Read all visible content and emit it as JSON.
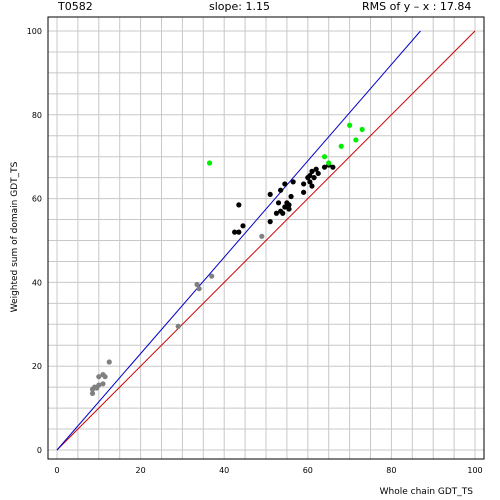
{
  "header": {
    "target": "T0582",
    "slope": "slope: 1.15",
    "rms": "RMS of  y – x : 17.84"
  },
  "chart_data": {
    "type": "scatter",
    "title": "",
    "xlabel": "Whole chain GDT_TS",
    "ylabel": "Weighted sum of domain GDT_TS",
    "xlim": [
      0,
      100
    ],
    "ylim": [
      0,
      100
    ],
    "x_ticks": [
      0,
      20,
      40,
      60,
      80,
      100
    ],
    "y_ticks": [
      0,
      20,
      40,
      60,
      80,
      100
    ],
    "grid": true,
    "lines": [
      {
        "name": "y = x",
        "color": "#cc0000",
        "slope": 1.0
      },
      {
        "name": "fit",
        "color": "#0000cc",
        "slope": 1.15
      }
    ],
    "series": [
      {
        "color": "#808080",
        "points": [
          [
            8.5,
            13.5
          ],
          [
            8.5,
            14.5
          ],
          [
            9,
            15
          ],
          [
            9.5,
            14.8
          ],
          [
            10,
            15.5
          ],
          [
            10,
            17.5
          ],
          [
            11,
            15.8
          ],
          [
            11,
            18
          ],
          [
            11.5,
            17.5
          ],
          [
            12.5,
            21
          ],
          [
            29,
            29.5
          ],
          [
            33.5,
            39.5
          ],
          [
            34,
            38.5
          ],
          [
            37,
            41.5
          ],
          [
            49,
            51
          ]
        ]
      },
      {
        "color": "#000000",
        "points": [
          [
            42.5,
            52
          ],
          [
            43.5,
            58.5
          ],
          [
            43.5,
            52
          ],
          [
            44.5,
            53.5
          ],
          [
            51,
            61
          ],
          [
            51,
            54.5
          ],
          [
            52.5,
            56.5
          ],
          [
            53,
            59
          ],
          [
            53.5,
            62
          ],
          [
            53.5,
            57
          ],
          [
            54,
            56.5
          ],
          [
            54.5,
            58
          ],
          [
            54.5,
            63.5
          ],
          [
            55,
            59
          ],
          [
            55.5,
            58.5
          ],
          [
            55.5,
            57.5
          ],
          [
            56,
            60.5
          ],
          [
            56.5,
            64
          ],
          [
            59,
            63.5
          ],
          [
            59,
            61.5
          ],
          [
            60,
            65
          ],
          [
            60.5,
            64
          ],
          [
            60.5,
            65.5
          ],
          [
            61,
            66.5
          ],
          [
            61,
            63
          ],
          [
            61.5,
            65
          ],
          [
            62,
            67
          ],
          [
            62.5,
            66
          ],
          [
            64,
            67.5
          ],
          [
            65,
            68
          ],
          [
            66,
            67.5
          ]
        ]
      },
      {
        "color": "#00ee00",
        "points": [
          [
            36.5,
            68.5
          ],
          [
            64,
            70
          ],
          [
            65,
            68.5
          ],
          [
            68,
            72.5
          ],
          [
            70,
            77.5
          ],
          [
            71.5,
            74
          ],
          [
            73,
            76.5
          ]
        ]
      }
    ]
  }
}
